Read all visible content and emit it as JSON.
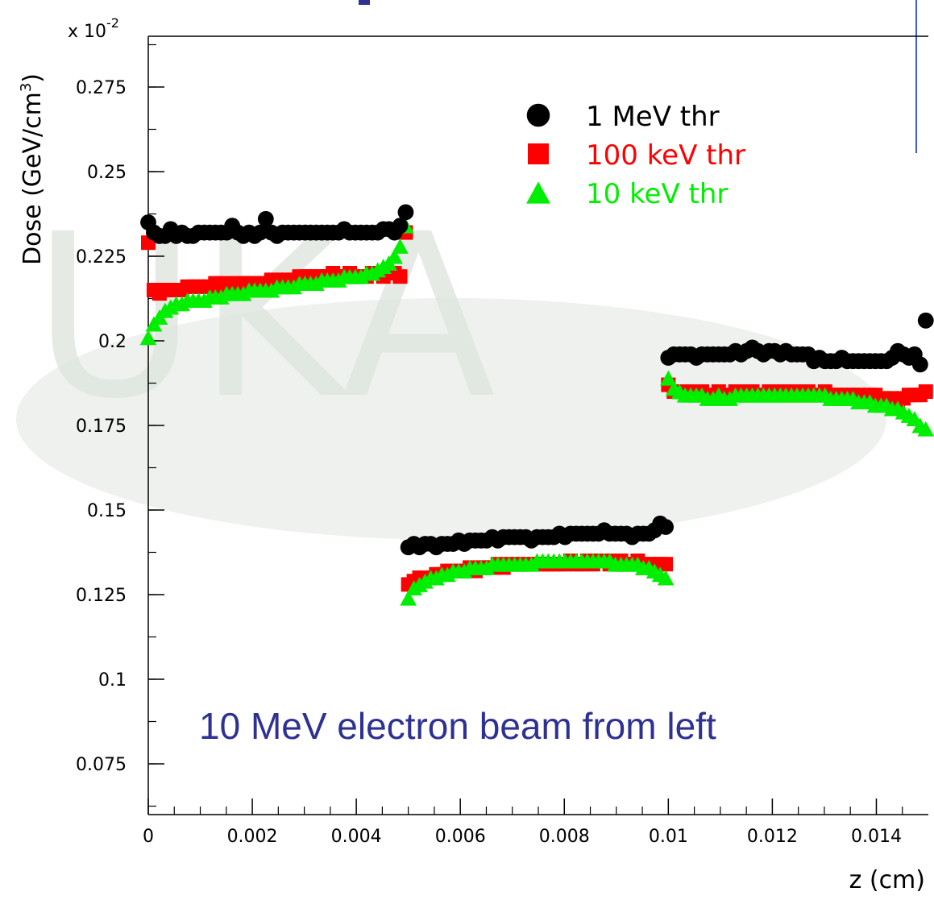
{
  "chart_data": {
    "type": "scatter",
    "xlabel": "z (cm)",
    "ylabel": "Dose (GeV/cm",
    "ylabel_sup": "3",
    "y_multiplier_base": "x 10",
    "y_multiplier_exp": "-2",
    "xlim": [
      0,
      0.015
    ],
    "ylim": [
      0.06,
      0.29
    ],
    "x_ticks": [
      0,
      0.002,
      0.004,
      0.006,
      0.008,
      0.01,
      0.012,
      0.014
    ],
    "x_tick_labels": [
      "0",
      "0.002",
      "0.004",
      "0.006",
      "0.008",
      "0.01",
      "0.012",
      "0.014"
    ],
    "y_ticks": [
      0.075,
      0.1,
      0.125,
      0.15,
      0.175,
      0.2,
      0.225,
      0.25,
      0.275
    ],
    "y_tick_labels": [
      "0.075",
      "0.1",
      "0.125",
      "0.15",
      "0.175",
      "0.2",
      "0.225",
      "0.25",
      "0.275"
    ],
    "legend_position": "top-right",
    "annotation": "10 MeV electron beam from left",
    "colors": {
      "1mev": "#000000",
      "100kev": "#ff0000",
      "10kev": "#00ee00",
      "annotation": "#2e3192",
      "watermark": "#e8ece8"
    },
    "series": [
      {
        "name": "1 MeV thr",
        "marker": "circle",
        "color": "#000000",
        "segments": [
          {
            "x_start": 0.0,
            "x_end": 0.00495,
            "y": [
              0.235,
              0.232,
              0.231,
              0.231,
              0.233,
              0.231,
              0.232,
              0.231,
              0.231,
              0.232,
              0.232,
              0.232,
              0.232,
              0.232,
              0.232,
              0.234,
              0.232,
              0.231,
              0.232,
              0.231,
              0.232,
              0.236,
              0.232,
              0.231,
              0.232,
              0.232,
              0.232,
              0.232,
              0.232,
              0.232,
              0.232,
              0.232,
              0.232,
              0.232,
              0.232,
              0.233,
              0.232,
              0.232,
              0.232,
              0.232,
              0.232,
              0.232,
              0.233,
              0.233,
              0.232,
              0.234,
              0.238
            ]
          },
          {
            "x_start": 0.005,
            "x_end": 0.00995,
            "y": [
              0.139,
              0.14,
              0.139,
              0.14,
              0.14,
              0.139,
              0.14,
              0.14,
              0.14,
              0.141,
              0.14,
              0.141,
              0.141,
              0.141,
              0.141,
              0.142,
              0.141,
              0.142,
              0.142,
              0.142,
              0.142,
              0.142,
              0.141,
              0.142,
              0.142,
              0.142,
              0.142,
              0.143,
              0.142,
              0.143,
              0.143,
              0.143,
              0.143,
              0.143,
              0.143,
              0.144,
              0.143,
              0.143,
              0.143,
              0.143,
              0.142,
              0.143,
              0.143,
              0.143,
              0.144,
              0.146,
              0.145
            ]
          },
          {
            "x_start": 0.01,
            "x_end": 0.01495,
            "y": [
              0.195,
              0.196,
              0.196,
              0.196,
              0.196,
              0.195,
              0.196,
              0.196,
              0.196,
              0.196,
              0.196,
              0.196,
              0.197,
              0.196,
              0.197,
              0.198,
              0.197,
              0.196,
              0.197,
              0.197,
              0.196,
              0.197,
              0.196,
              0.196,
              0.196,
              0.196,
              0.194,
              0.195,
              0.194,
              0.194,
              0.194,
              0.195,
              0.194,
              0.194,
              0.194,
              0.194,
              0.194,
              0.194,
              0.194,
              0.194,
              0.195,
              0.197,
              0.196,
              0.195,
              0.196,
              0.193,
              0.206
            ]
          }
        ]
      },
      {
        "name": "100 keV thr",
        "marker": "square",
        "color": "#ff0000",
        "segments": [
          {
            "x_start": 0.0,
            "x_end": 0.00495,
            "y": [
              0.229,
              0.215,
              0.214,
              0.215,
              0.215,
              0.215,
              0.215,
              0.216,
              0.216,
              0.216,
              0.216,
              0.216,
              0.217,
              0.216,
              0.217,
              0.216,
              0.217,
              0.217,
              0.217,
              0.217,
              0.217,
              0.217,
              0.218,
              0.218,
              0.218,
              0.218,
              0.218,
              0.219,
              0.219,
              0.219,
              0.219,
              0.219,
              0.219,
              0.22,
              0.219,
              0.219,
              0.22,
              0.219,
              0.219,
              0.219,
              0.22,
              0.22,
              0.219,
              0.22,
              0.22,
              0.219,
              0.232
            ]
          },
          {
            "x_start": 0.005,
            "x_end": 0.00995,
            "y": [
              0.128,
              0.129,
              0.13,
              0.13,
              0.13,
              0.131,
              0.131,
              0.132,
              0.132,
              0.132,
              0.132,
              0.133,
              0.132,
              0.133,
              0.133,
              0.133,
              0.134,
              0.133,
              0.134,
              0.134,
              0.134,
              0.134,
              0.134,
              0.134,
              0.134,
              0.134,
              0.134,
              0.134,
              0.134,
              0.135,
              0.134,
              0.134,
              0.135,
              0.134,
              0.135,
              0.135,
              0.134,
              0.135,
              0.135,
              0.134,
              0.134,
              0.135,
              0.134,
              0.134,
              0.134,
              0.134,
              0.134
            ]
          },
          {
            "x_start": 0.01,
            "x_end": 0.01495,
            "y": [
              0.187,
              0.185,
              0.185,
              0.185,
              0.185,
              0.184,
              0.185,
              0.184,
              0.184,
              0.185,
              0.184,
              0.184,
              0.185,
              0.184,
              0.185,
              0.185,
              0.184,
              0.184,
              0.185,
              0.185,
              0.184,
              0.185,
              0.185,
              0.185,
              0.184,
              0.185,
              0.184,
              0.184,
              0.185,
              0.184,
              0.184,
              0.184,
              0.184,
              0.184,
              0.184,
              0.183,
              0.184,
              0.184,
              0.183,
              0.183,
              0.183,
              0.182,
              0.183,
              0.184,
              0.184,
              0.184,
              0.185
            ]
          }
        ]
      },
      {
        "name": "10 keV thr",
        "marker": "triangle",
        "color": "#00ee00",
        "segments": [
          {
            "x_start": 0.0,
            "x_end": 0.00495,
            "y": [
              0.201,
              0.205,
              0.207,
              0.209,
              0.21,
              0.211,
              0.211,
              0.212,
              0.212,
              0.212,
              0.212,
              0.213,
              0.213,
              0.213,
              0.214,
              0.214,
              0.214,
              0.214,
              0.215,
              0.215,
              0.215,
              0.215,
              0.215,
              0.216,
              0.216,
              0.216,
              0.216,
              0.217,
              0.217,
              0.217,
              0.217,
              0.218,
              0.218,
              0.218,
              0.218,
              0.219,
              0.219,
              0.219,
              0.219,
              0.22,
              0.22,
              0.221,
              0.222,
              0.223,
              0.225,
              0.228,
              0.234
            ]
          },
          {
            "x_start": 0.005,
            "x_end": 0.00995,
            "y": [
              0.124,
              0.127,
              0.128,
              0.129,
              0.13,
              0.13,
              0.131,
              0.131,
              0.132,
              0.132,
              0.132,
              0.133,
              0.133,
              0.133,
              0.133,
              0.134,
              0.134,
              0.134,
              0.134,
              0.134,
              0.134,
              0.134,
              0.134,
              0.135,
              0.135,
              0.135,
              0.135,
              0.135,
              0.135,
              0.135,
              0.135,
              0.135,
              0.135,
              0.135,
              0.135,
              0.135,
              0.135,
              0.134,
              0.134,
              0.134,
              0.134,
              0.134,
              0.133,
              0.133,
              0.132,
              0.131,
              0.13
            ]
          },
          {
            "x_start": 0.01,
            "x_end": 0.01495,
            "y": [
              0.189,
              0.186,
              0.185,
              0.184,
              0.184,
              0.184,
              0.184,
              0.183,
              0.183,
              0.184,
              0.183,
              0.183,
              0.184,
              0.184,
              0.184,
              0.184,
              0.184,
              0.184,
              0.184,
              0.184,
              0.184,
              0.184,
              0.184,
              0.184,
              0.184,
              0.184,
              0.184,
              0.184,
              0.184,
              0.183,
              0.183,
              0.183,
              0.183,
              0.183,
              0.182,
              0.182,
              0.182,
              0.181,
              0.181,
              0.181,
              0.18,
              0.18,
              0.179,
              0.178,
              0.177,
              0.175,
              0.174
            ]
          }
        ]
      }
    ]
  }
}
